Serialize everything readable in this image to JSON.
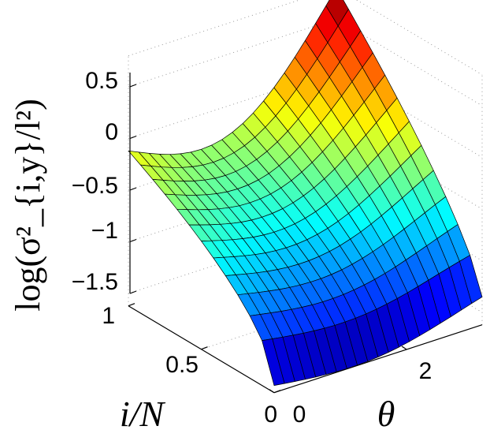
{
  "chart_data": {
    "type": "surface",
    "title": "",
    "xlabel": "θ",
    "ylabel": "i/N",
    "zlabel": "log(σ²_{i,y}/l²)",
    "xlim": [
      0,
      3.14
    ],
    "ylim": [
      0,
      1
    ],
    "zlim": [
      -1.6,
      0.8
    ],
    "x_ticks": [
      "0",
      "2"
    ],
    "y_ticks": [
      "0",
      "0.5",
      "1"
    ],
    "z_ticks": [
      "0.5",
      "0",
      "−0.5",
      "−1",
      "−1.5"
    ],
    "colormap": "jet",
    "grid": true,
    "surface": {
      "theta_samples": 21,
      "fraction_samples": 13,
      "corner_values": {
        "theta_0_fraction_1": -0.12,
        "theta_0_fraction_0": -1.55,
        "theta_max_fraction_1": 0.8,
        "theta_max_fraction_0": -1.35
      },
      "description_model": "log value rises with i/N and rises sharply as theta approaches its maximum"
    }
  }
}
